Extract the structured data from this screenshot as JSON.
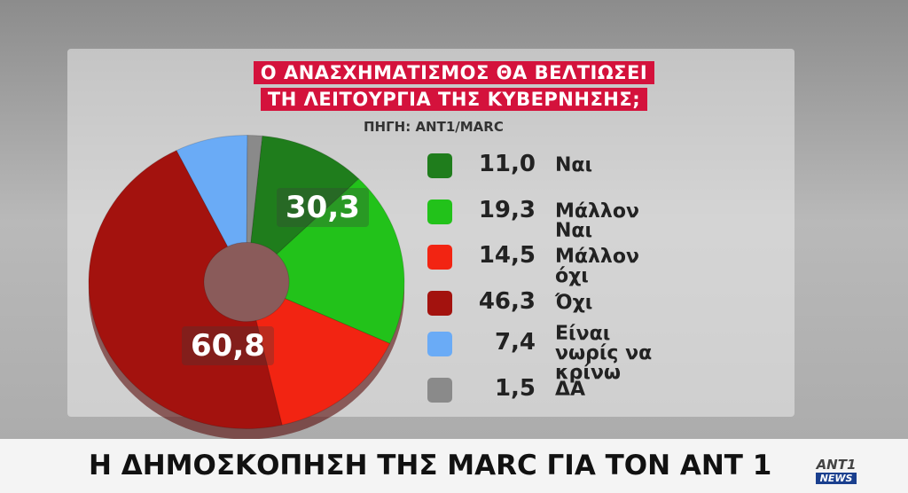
{
  "chart_data": {
    "type": "donut",
    "title_lines": [
      "Ο ΑΝΑΣΧΗΜΑΤΙΣΜΟΣ ΘΑ ΒΕΛΤΙΩΣΕΙ",
      "ΤΗ ΛΕΙΤΟΥΡΓΙΑ ΤΗΣ ΚΥΒΕΡΝΗΣΗΣ;"
    ],
    "subtitle": "ΠΗΓΗ: ANT1/MARC",
    "categories": [
      "Ναι",
      "Μάλλον Ναι",
      "Μάλλον όχι",
      "Όχι",
      "Είναι νωρίς να κρίνω",
      "ΔΑ"
    ],
    "values": [
      11.0,
      19.3,
      14.5,
      46.3,
      7.4,
      1.5
    ],
    "value_labels": [
      "11,0",
      "19,3",
      "14,5",
      "46,3",
      "7,4",
      "1,5"
    ],
    "colors": [
      "#1f7d1c",
      "#22c21a",
      "#f22412",
      "#a3120e",
      "#6aabf6",
      "#8a8a8a"
    ],
    "annotations": [
      {
        "value": 30.3,
        "label": "30,3"
      },
      {
        "value": 60.8,
        "label": "60,8"
      }
    ]
  },
  "ticker": "Η ΔΗΜΟΣΚΟΠΗΣΗ ΤΗΣ MARC ΓΙΑ ΤΟΝ ΑΝΤ 1",
  "logo": {
    "top": "ANT1",
    "bottom": "NEWS"
  }
}
